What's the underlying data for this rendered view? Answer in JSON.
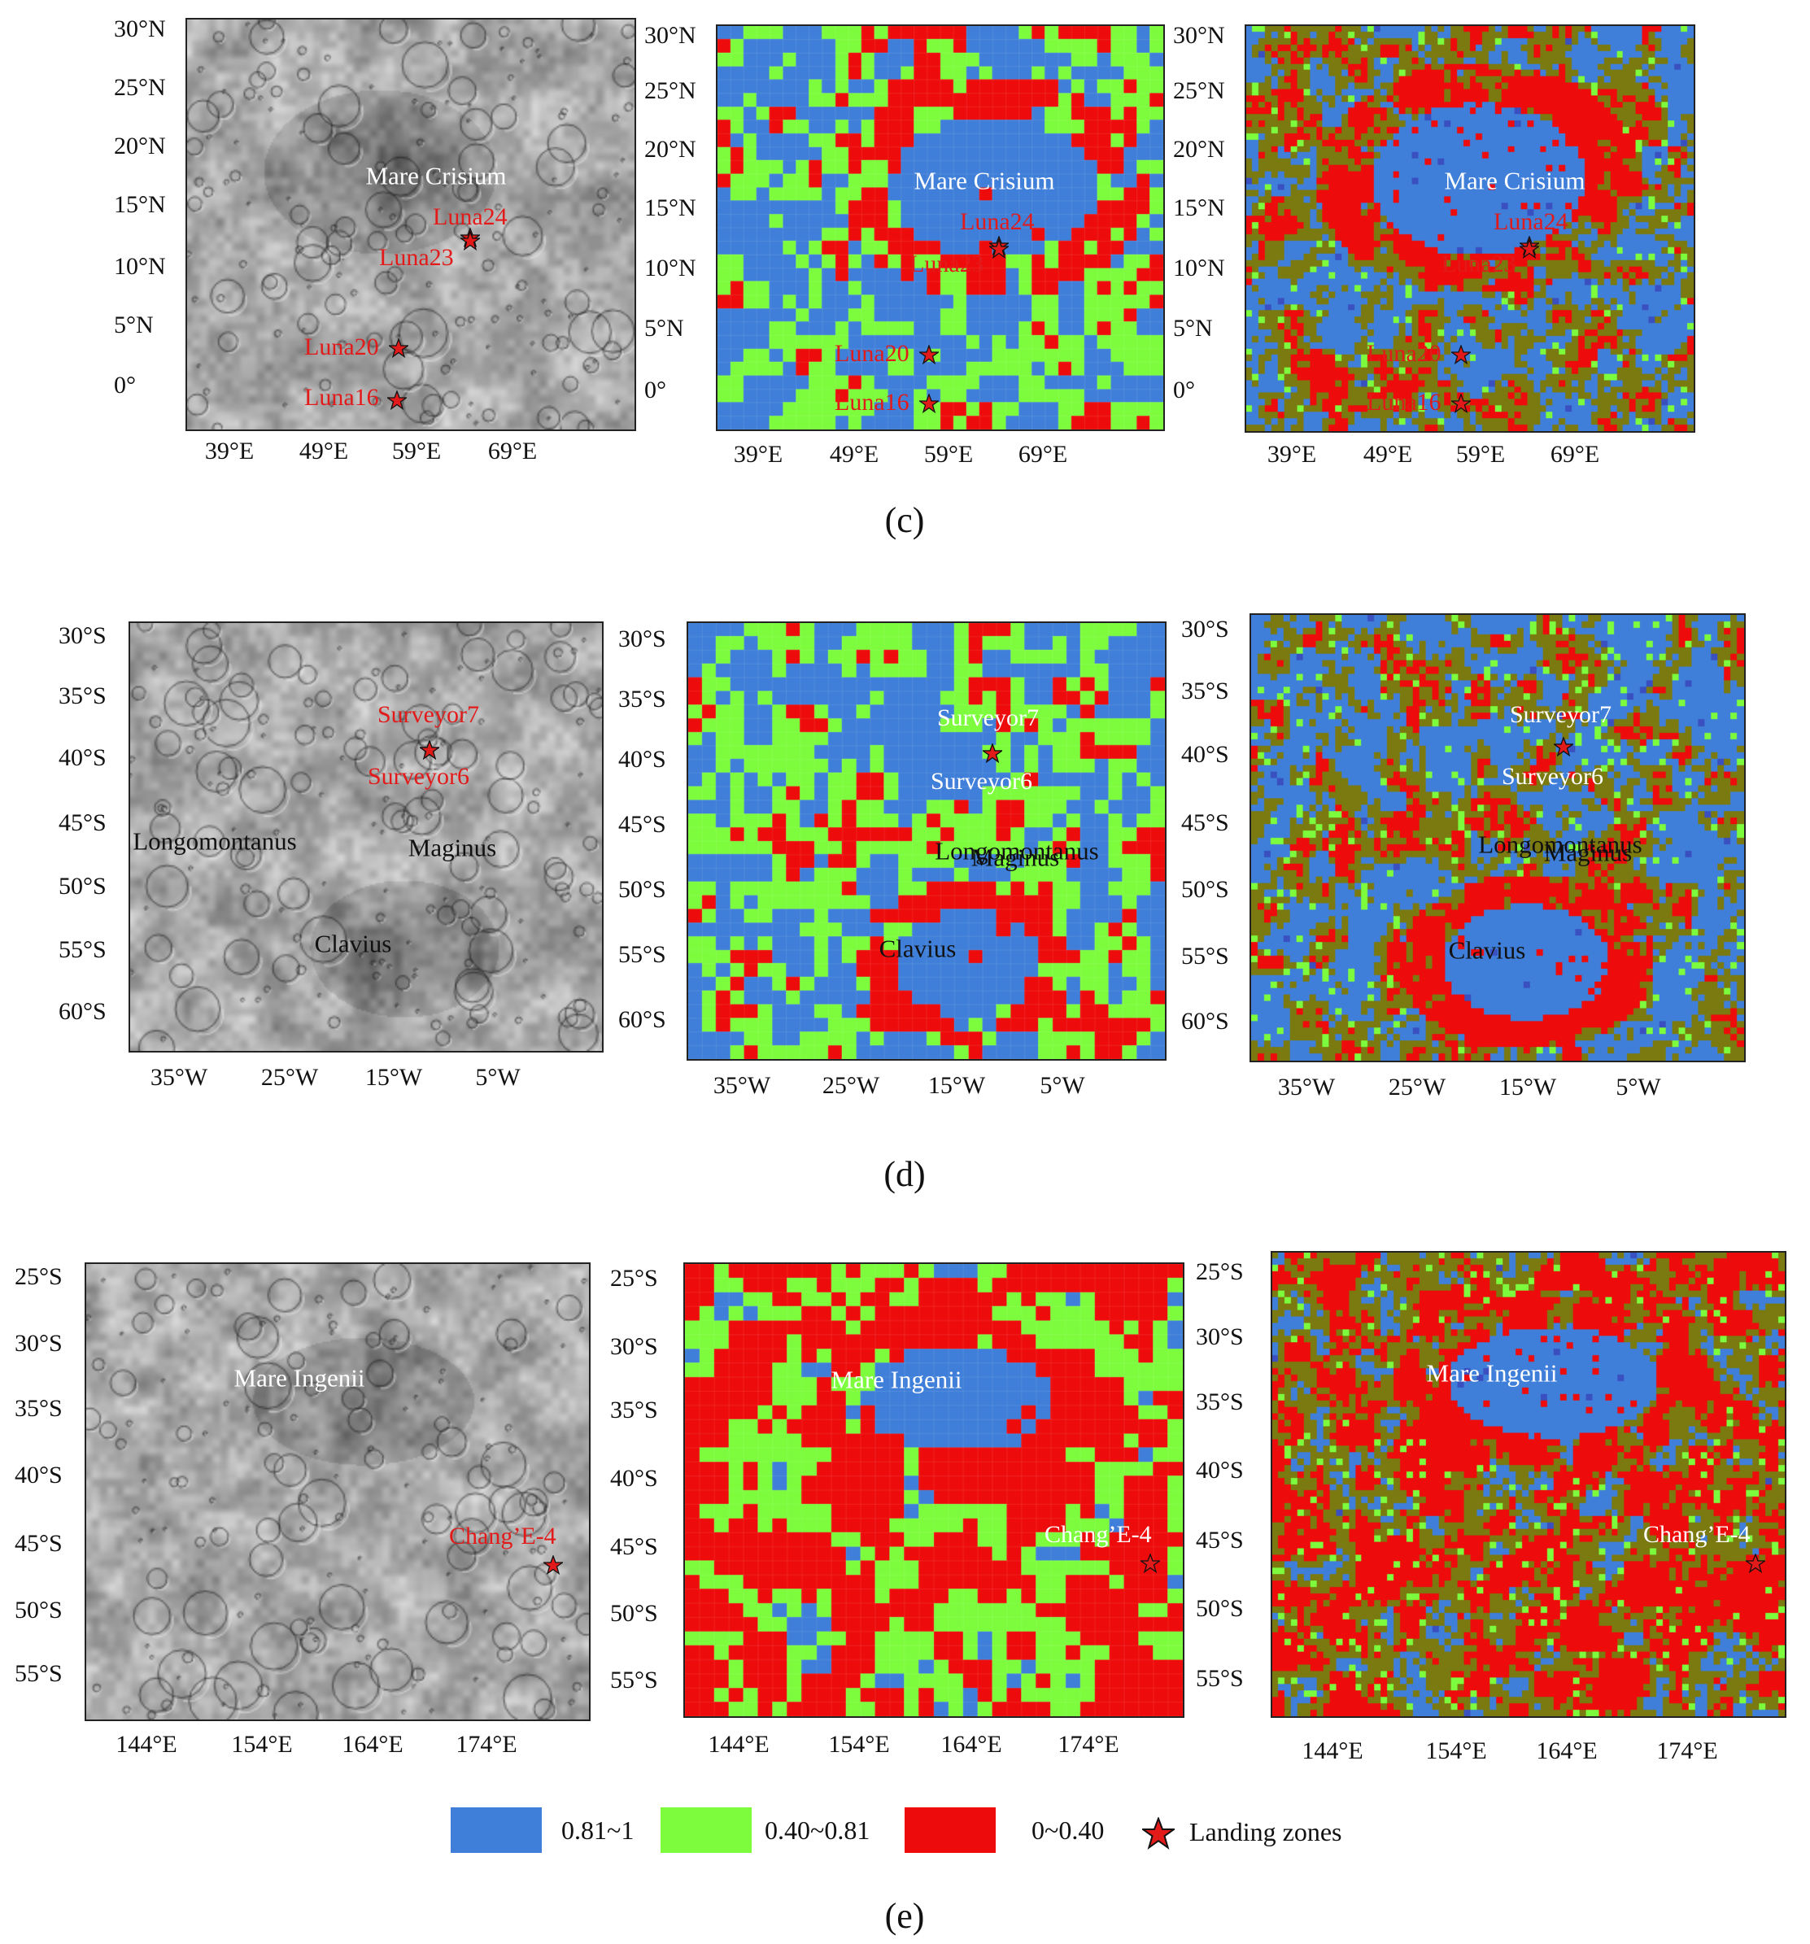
{
  "legend": {
    "classes": [
      {
        "label": "0.81~1",
        "color": "#3f7fd9"
      },
      {
        "label": "0.40~0.81",
        "color": "#7cfc3c"
      },
      {
        "label": "0~0.40",
        "color": "#ee0b0b"
      }
    ],
    "landing_label": "Landing zones",
    "landing_color": "#e21a1a"
  },
  "figures": [
    {
      "caption": "(c)",
      "region": "Mare Crisium",
      "y_ticks": [
        "30°N",
        "25°N",
        "20°N",
        "15°N",
        "10°N",
        "5°N",
        "0°"
      ],
      "x_ticks": [
        "39°E",
        "49°E",
        "59°E",
        "69°E"
      ],
      "features": [
        "Mare Crisium"
      ],
      "landing_sites": [
        "Luna24",
        "Luna23",
        "Luna20",
        "Luna16"
      ]
    },
    {
      "caption": "(d)",
      "region": "Clavius",
      "y_ticks": [
        "30°S",
        "35°S",
        "40°S",
        "45°S",
        "50°S",
        "55°S",
        "60°S"
      ],
      "x_ticks": [
        "35°W",
        "25°W",
        "15°W",
        "5°W"
      ],
      "features": [
        "Longomontanus",
        "Maginus",
        "Clavius"
      ],
      "landing_sites": [
        "Surveyor7",
        "Surveyor6"
      ]
    },
    {
      "caption": "(e)",
      "region": "Mare Ingenii",
      "y_ticks": [
        "25°S",
        "30°S",
        "35°S",
        "40°S",
        "45°S",
        "50°S",
        "55°S"
      ],
      "x_ticks": [
        "144°E",
        "154°E",
        "164°E",
        "174°E"
      ],
      "features": [
        "Mare Ingenii"
      ],
      "landing_sites": [
        "Chang’E-4"
      ]
    }
  ]
}
